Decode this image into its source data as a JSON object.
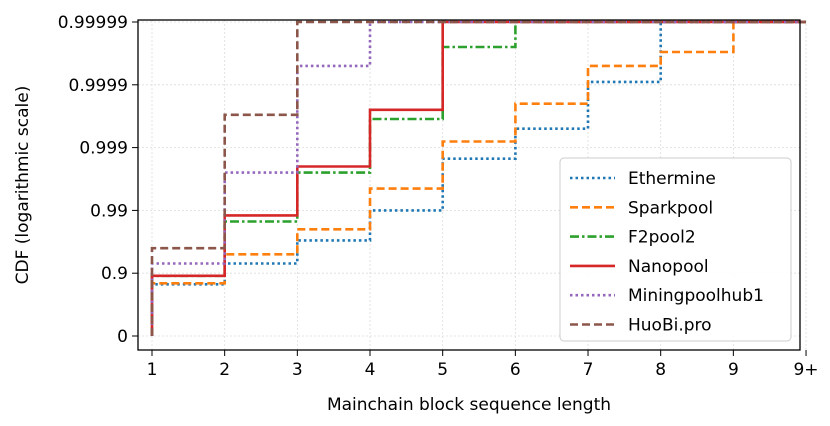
{
  "chart_data": {
    "type": "line",
    "step": true,
    "xlabel": "Mainchain block sequence length",
    "ylabel": "CDF (logarithmic scale)",
    "x_ticks": [
      "1",
      "2",
      "3",
      "4",
      "5",
      "6",
      "7",
      "8",
      "9",
      "9+"
    ],
    "y_ticks": [
      "0",
      "0.9",
      "0.99",
      "0.999",
      "0.9999",
      "0.99999"
    ],
    "y_scale": "log(1-CDF)",
    "grid": true,
    "legend_position": "lower-right",
    "series": [
      {
        "name": "Ethermine",
        "color": "#1f77b4",
        "dash": "dotted",
        "x": [
          1,
          2,
          3,
          4,
          5,
          6,
          7,
          8,
          9
        ],
        "y": [
          0.85,
          0.93,
          0.97,
          0.99,
          0.9985,
          0.9995,
          0.99991,
          0.99999,
          0.99999
        ]
      },
      {
        "name": "Sparkpool",
        "color": "#ff7f0e",
        "dash": "dashed",
        "x": [
          1,
          2,
          3,
          4,
          5,
          6,
          7,
          8,
          9
        ],
        "y": [
          0.855,
          0.95,
          0.98,
          0.9955,
          0.9992,
          0.9998,
          0.99995,
          0.99997,
          0.99999
        ]
      },
      {
        "name": "F2pool2",
        "color": "#2ca02c",
        "dash": "dashdot",
        "x": [
          1,
          2,
          3,
          4,
          5,
          6,
          7,
          8,
          9
        ],
        "y": [
          0.89,
          0.985,
          0.9975,
          0.99965,
          0.999975,
          0.99999,
          0.99999,
          0.99999,
          0.99999
        ]
      },
      {
        "name": "Nanopool",
        "color": "#d62728",
        "dash": "solid",
        "x": [
          1,
          2,
          3,
          4,
          5,
          6,
          7,
          8,
          9
        ],
        "y": [
          0.89,
          0.988,
          0.998,
          0.99975,
          0.99999,
          0.99999,
          0.99999,
          0.99999,
          0.99999
        ]
      },
      {
        "name": "Miningpoolhub1",
        "color": "#9467bd",
        "dash": "dotted",
        "x": [
          1,
          2,
          3,
          4,
          5,
          6,
          7,
          8,
          9
        ],
        "y": [
          0.93,
          0.9975,
          0.99995,
          0.99999,
          0.99999,
          0.99999,
          0.99999,
          0.99999,
          0.99999
        ]
      },
      {
        "name": "HuoBi.pro",
        "color": "#8c564b",
        "dash": "dashed",
        "x": [
          1,
          2,
          3,
          4,
          5,
          6,
          7,
          8,
          9
        ],
        "y": [
          0.96,
          0.9997,
          0.99999,
          0.99999,
          0.99999,
          0.99999,
          0.99999,
          0.99999,
          0.99999
        ]
      }
    ]
  }
}
